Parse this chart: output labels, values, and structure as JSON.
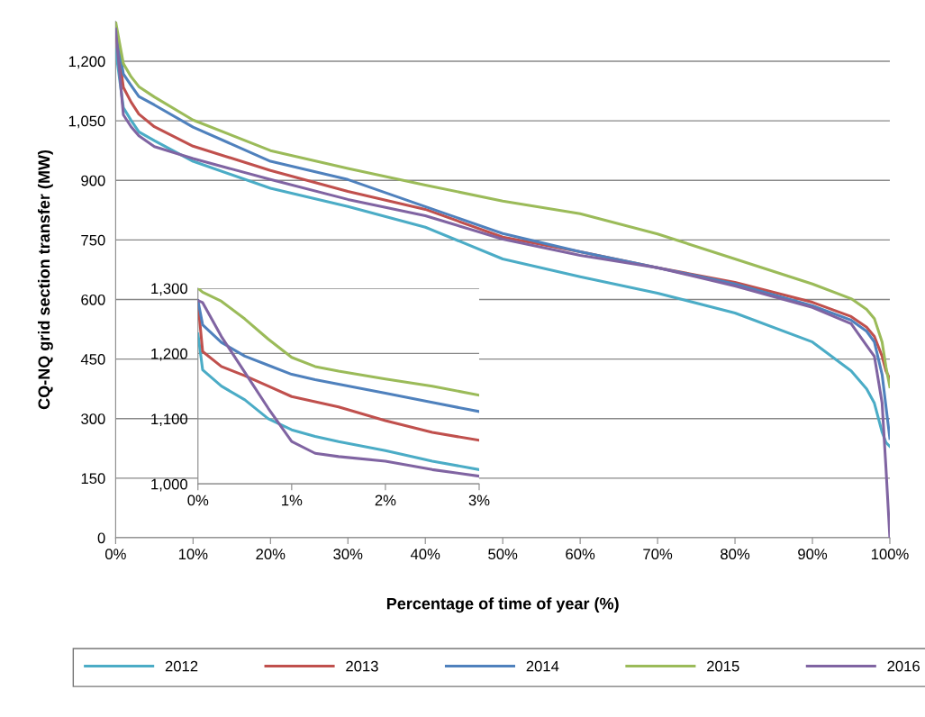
{
  "chart_data": [
    {
      "type": "line",
      "xlabel": "Percentage of time of year (%)",
      "ylabel": "CQ-NQ grid section transfer (MW)",
      "x": [
        0,
        1,
        2,
        3,
        5,
        10,
        20,
        30,
        40,
        50,
        60,
        70,
        80,
        90,
        95,
        97,
        98,
        99,
        99.5,
        100
      ],
      "xlim": [
        0,
        100
      ],
      "xticks": [
        {
          "value": 0,
          "label": "0%"
        },
        {
          "value": 10,
          "label": "10%"
        },
        {
          "value": 20,
          "label": "20%"
        },
        {
          "value": 30,
          "label": "30%"
        },
        {
          "value": 40,
          "label": "40%"
        },
        {
          "value": 50,
          "label": "50%"
        },
        {
          "value": 60,
          "label": "60%"
        },
        {
          "value": 70,
          "label": "70%"
        },
        {
          "value": 80,
          "label": "80%"
        },
        {
          "value": 90,
          "label": "90%"
        },
        {
          "value": 100,
          "label": "100%"
        }
      ],
      "ylim": [
        0,
        1300
      ],
      "yticks": [
        0,
        150,
        300,
        450,
        600,
        750,
        900,
        {
          "value": 1050,
          "label": "1,050"
        },
        {
          "value": 1200,
          "label": "1,200"
        }
      ],
      "grid": "y",
      "legend": "bottom",
      "marker": "none",
      "line_style": "solid",
      "series": [
        {
          "name": "2012",
          "color": "#4bacc6",
          "values": [
            1230,
            1083,
            1051,
            1022,
            1000,
            948,
            880,
            834,
            782,
            702,
            657,
            616,
            566,
            493,
            420,
            375,
            339,
            266,
            240,
            230
          ]
        },
        {
          "name": "2013",
          "color": "#c0504d",
          "values": [
            1278,
            1134,
            1097,
            1067,
            1035,
            986,
            925,
            872,
            827,
            757,
            720,
            680,
            643,
            593,
            557,
            530,
            507,
            457,
            420,
            400
          ]
        },
        {
          "name": "2014",
          "color": "#4f81bd",
          "values": [
            1281,
            1168,
            1139,
            1111,
            1090,
            1034,
            948,
            902,
            834,
            766,
            720,
            680,
            639,
            584,
            548,
            520,
            493,
            411,
            330,
            250
          ]
        },
        {
          "name": "2015",
          "color": "#9bbb59",
          "values": [
            1300,
            1194,
            1161,
            1136,
            1110,
            1052,
            975,
            930,
            888,
            848,
            816,
            765,
            702,
            639,
            602,
            575,
            552,
            493,
            430,
            380
          ]
        },
        {
          "name": "2016",
          "color": "#8064a2",
          "values": [
            1281,
            1065,
            1035,
            1012,
            985,
            955,
            902,
            852,
            811,
            752,
            711,
            680,
            634,
            580,
            539,
            484,
            457,
            339,
            175,
            0
          ]
        }
      ]
    },
    {
      "type": "line",
      "x": [
        0,
        0.05,
        0.25,
        0.5,
        0.75,
        1,
        1.25,
        1.5,
        2,
        2.5,
        3
      ],
      "xlim": [
        0,
        3
      ],
      "xticks": [
        {
          "value": 0,
          "label": "0%"
        },
        {
          "value": 1,
          "label": "1%"
        },
        {
          "value": 2,
          "label": "2%"
        },
        {
          "value": 3,
          "label": "3%"
        }
      ],
      "ylim": [
        1000,
        1300
      ],
      "yticks": [
        {
          "value": 1000,
          "label": "1,000"
        },
        {
          "value": 1100,
          "label": "1,100"
        },
        {
          "value": 1200,
          "label": "1,200"
        },
        {
          "value": 1300,
          "label": "1,300"
        }
      ],
      "grid": "y",
      "marker": "none",
      "line_style": "solid",
      "series": [
        {
          "name": "2012",
          "color": "#4bacc6",
          "values": [
            1230,
            1175,
            1150,
            1129,
            1100,
            1083,
            1073,
            1065,
            1051,
            1035,
            1022
          ]
        },
        {
          "name": "2013",
          "color": "#c0504d",
          "values": [
            1278,
            1203,
            1180,
            1166,
            1150,
            1134,
            1126,
            1118,
            1097,
            1079,
            1067
          ]
        },
        {
          "name": "2014",
          "color": "#4f81bd",
          "values": [
            1281,
            1244,
            1217,
            1196,
            1182,
            1168,
            1160,
            1153,
            1139,
            1125,
            1111
          ]
        },
        {
          "name": "2015",
          "color": "#9bbb59",
          "values": [
            1300,
            1294,
            1280,
            1253,
            1222,
            1194,
            1180,
            1173,
            1161,
            1150,
            1136
          ]
        },
        {
          "name": "2016",
          "color": "#8064a2",
          "values": [
            1281,
            1278,
            1226,
            1171,
            1116,
            1065,
            1047,
            1042,
            1035,
            1022,
            1012
          ]
        }
      ]
    }
  ]
}
